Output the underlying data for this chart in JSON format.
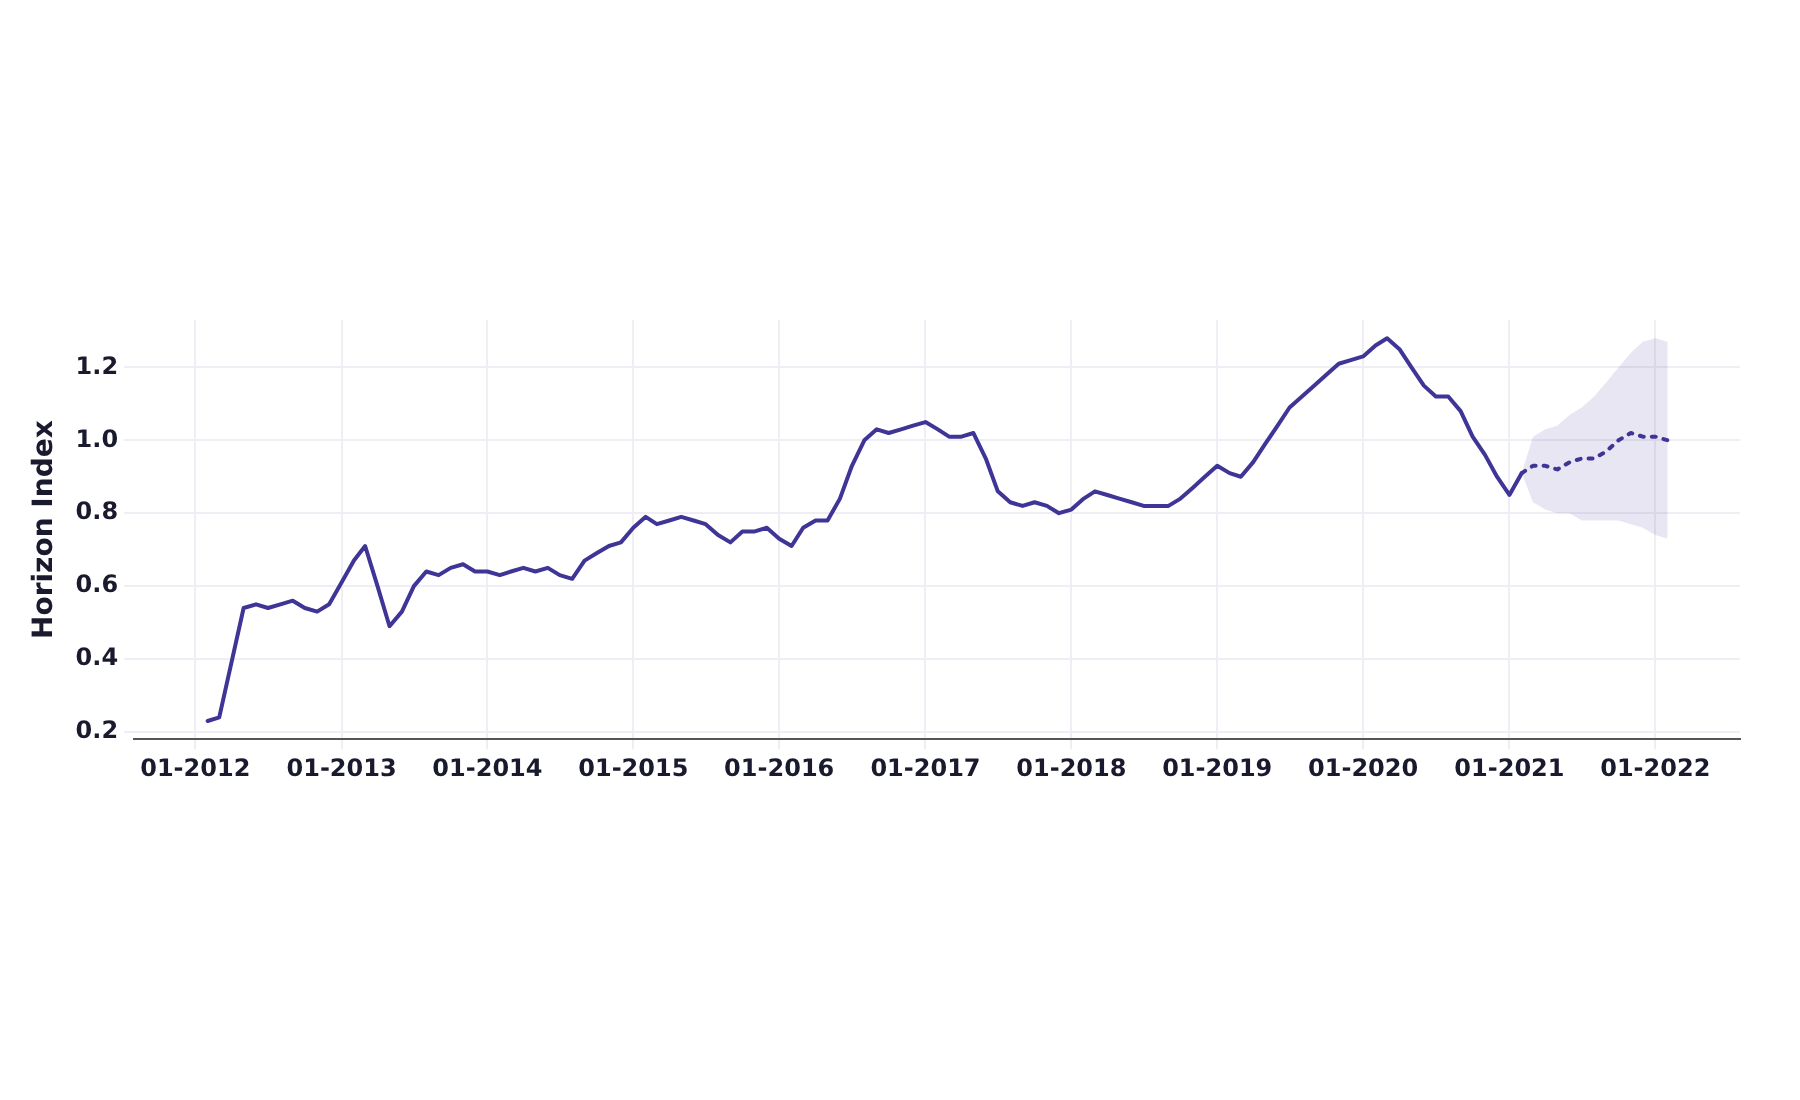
{
  "chart_data": {
    "type": "line",
    "ylabel": "Horizon Index",
    "xlim": [
      "2011-08",
      "2022-08"
    ],
    "ylim": [
      0.18,
      1.33
    ],
    "xticks": [
      {
        "value": "2012-01",
        "label": "01-2012"
      },
      {
        "value": "2013-01",
        "label": "01-2013"
      },
      {
        "value": "2014-01",
        "label": "01-2014"
      },
      {
        "value": "2015-01",
        "label": "01-2015"
      },
      {
        "value": "2016-01",
        "label": "01-2016"
      },
      {
        "value": "2017-01",
        "label": "01-2017"
      },
      {
        "value": "2018-01",
        "label": "01-2018"
      },
      {
        "value": "2019-01",
        "label": "01-2019"
      },
      {
        "value": "2020-01",
        "label": "01-2020"
      },
      {
        "value": "2021-01",
        "label": "01-2021"
      },
      {
        "value": "2022-01",
        "label": "01-2022"
      }
    ],
    "yticks": [
      0.2,
      0.4,
      0.6,
      0.8,
      {
        "value": 1,
        "label": "1.0"
      },
      1.2
    ],
    "grid": true,
    "legend": false,
    "marker": "none",
    "series": [
      {
        "color": "#3f3597",
        "line_style": "solid",
        "x": [
          "2012-02",
          "2012-03",
          "2012-05",
          "2012-06",
          "2012-07",
          "2012-08",
          "2012-09",
          "2012-10",
          "2012-11",
          "2012-12",
          "2013-01",
          "2013-02",
          "2013-03",
          "2013-04",
          "2013-05",
          "2013-06",
          "2013-07",
          "2013-08",
          "2013-09",
          "2013-10",
          "2013-11",
          "2013-12",
          "2014-01",
          "2014-02",
          "2014-03",
          "2014-04",
          "2014-05",
          "2014-06",
          "2014-07",
          "2014-08",
          "2014-09",
          "2014-10",
          "2014-11",
          "2014-12",
          "2015-01",
          "2015-02",
          "2015-03",
          "2015-04",
          "2015-05",
          "2015-06",
          "2015-07",
          "2015-08",
          "2015-09",
          "2015-10",
          "2015-11",
          "2015-12",
          "2016-01",
          "2016-02",
          "2016-03",
          "2016-04",
          "2016-05",
          "2016-06",
          "2016-07",
          "2016-08",
          "2016-09",
          "2016-10",
          "2016-11",
          "2016-12",
          "2017-01",
          "2017-02",
          "2017-03",
          "2017-04",
          "2017-05",
          "2017-06",
          "2017-07",
          "2017-08",
          "2017-09",
          "2017-10",
          "2017-11",
          "2017-12",
          "2018-01",
          "2018-02",
          "2018-03",
          "2018-04",
          "2018-05",
          "2018-06",
          "2018-07",
          "2018-08",
          "2018-09",
          "2018-10",
          "2018-11",
          "2018-12",
          "2019-01",
          "2019-02",
          "2019-03",
          "2019-04",
          "2019-05",
          "2019-06",
          "2019-07",
          "2019-08",
          "2019-09",
          "2019-10",
          "2019-11",
          "2019-12",
          "2020-01",
          "2020-02",
          "2020-03",
          "2020-04",
          "2020-05",
          "2020-06",
          "2020-07",
          "2020-08",
          "2020-09",
          "2020-10",
          "2020-11",
          "2020-12",
          "2021-01",
          "2021-02"
        ],
        "values": [
          0.23,
          0.24,
          0.54,
          0.55,
          0.54,
          0.55,
          0.56,
          0.54,
          0.53,
          0.55,
          0.61,
          0.67,
          0.71,
          0.6,
          0.49,
          0.53,
          0.6,
          0.64,
          0.63,
          0.65,
          0.66,
          0.64,
          0.64,
          0.63,
          0.64,
          0.65,
          0.64,
          0.65,
          0.63,
          0.62,
          0.67,
          0.69,
          0.71,
          0.72,
          0.76,
          0.79,
          0.77,
          0.78,
          0.79,
          0.78,
          0.77,
          0.74,
          0.72,
          0.75,
          0.75,
          0.76,
          0.73,
          0.71,
          0.76,
          0.78,
          0.78,
          0.84,
          0.93,
          1.0,
          1.03,
          1.02,
          1.03,
          1.04,
          1.05,
          1.03,
          1.01,
          1.01,
          1.02,
          0.95,
          0.86,
          0.83,
          0.82,
          0.83,
          0.82,
          0.8,
          0.81,
          0.84,
          0.86,
          0.85,
          0.84,
          0.83,
          0.82,
          0.82,
          0.82,
          0.84,
          0.87,
          0.9,
          0.93,
          0.91,
          0.9,
          0.94,
          0.99,
          1.04,
          1.09,
          1.12,
          1.15,
          1.18,
          1.21,
          1.22,
          1.23,
          1.26,
          1.28,
          1.25,
          1.2,
          1.15,
          1.12,
          1.12,
          1.08,
          1.01,
          0.96,
          0.9,
          0.85,
          0.91
        ]
      },
      {
        "color": "#3f3597",
        "line_style": "dotted",
        "x": [
          "2021-02",
          "2021-03",
          "2021-04",
          "2021-05",
          "2021-06",
          "2021-07",
          "2021-08",
          "2021-09",
          "2021-10",
          "2021-11",
          "2021-12",
          "2022-01",
          "2022-02"
        ],
        "values": [
          0.91,
          0.93,
          0.93,
          0.92,
          0.94,
          0.95,
          0.95,
          0.97,
          1.0,
          1.02,
          1.01,
          1.01,
          1.0
        ],
        "lower": [
          0.91,
          0.83,
          0.81,
          0.8,
          0.8,
          0.78,
          0.78,
          0.78,
          0.78,
          0.77,
          0.76,
          0.74,
          0.73
        ],
        "upper": [
          0.91,
          1.01,
          1.03,
          1.04,
          1.07,
          1.09,
          1.12,
          1.16,
          1.2,
          1.24,
          1.27,
          1.28,
          1.27
        ]
      }
    ]
  }
}
